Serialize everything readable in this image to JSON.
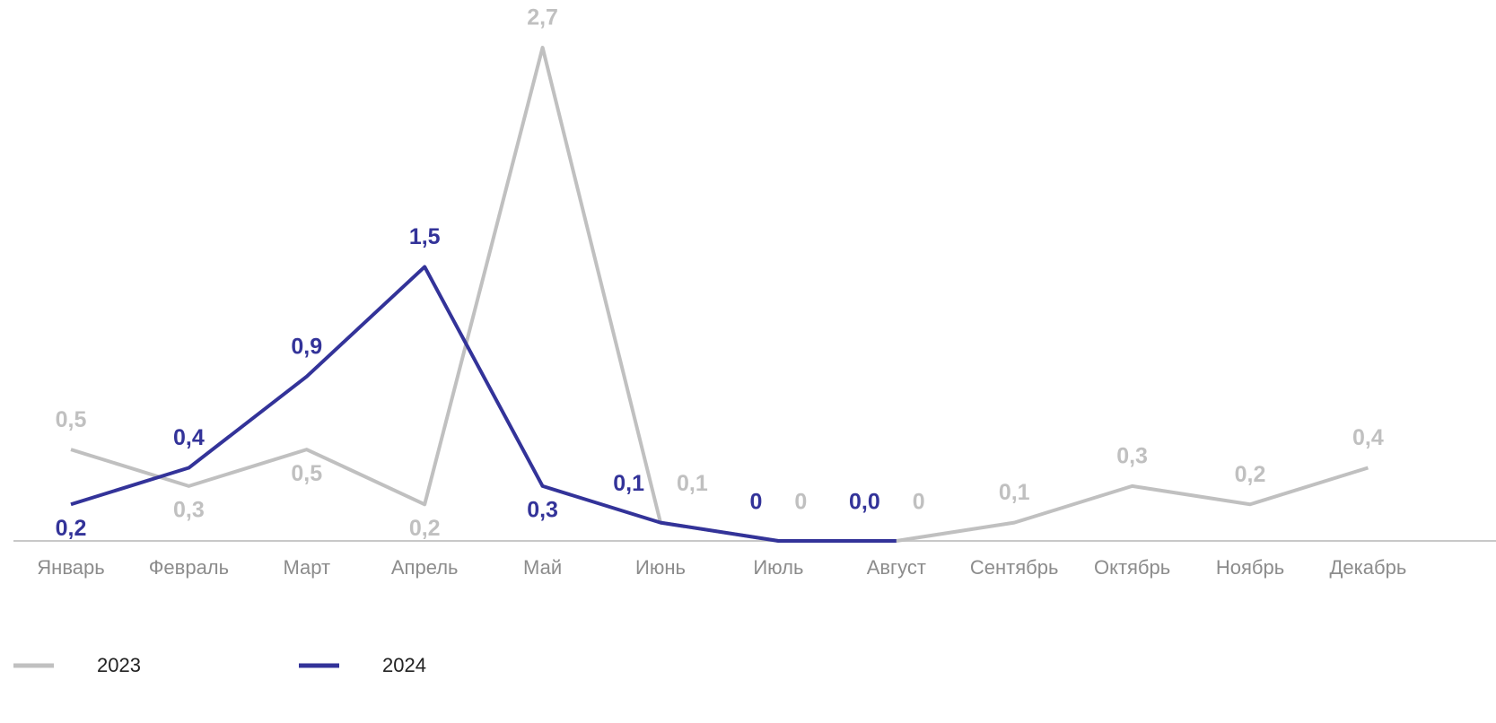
{
  "chart_data": {
    "type": "line",
    "categories": [
      "Январь",
      "Февраль",
      "Март",
      "Апрель",
      "Май",
      "Июнь",
      "Июль",
      "Август",
      "Сентябрь",
      "Октябрь",
      "Ноябрь",
      "Декабрь"
    ],
    "series": [
      {
        "name": "2023",
        "color": "#c0c0c0",
        "values": [
          0.5,
          0.3,
          0.5,
          0.2,
          2.7,
          0.1,
          0,
          0,
          0.1,
          0.3,
          0.2,
          0.4
        ],
        "value_labels": [
          "0,5",
          "0,3",
          "0,5",
          "0,2",
          "2,7",
          "0,1",
          "0",
          "0",
          "0,1",
          "0,3",
          "0,2",
          "0,4"
        ]
      },
      {
        "name": "2024",
        "color": "#333399",
        "values": [
          0.2,
          0.4,
          0.9,
          1.5,
          0.3,
          0.1,
          0,
          0.0,
          null,
          null,
          null,
          null
        ],
        "value_labels": [
          "0,2",
          "0,4",
          "0,9",
          "1,5",
          "0,3",
          "0,1",
          "0",
          "0,0",
          null,
          null,
          null,
          null
        ]
      }
    ]
  }
}
